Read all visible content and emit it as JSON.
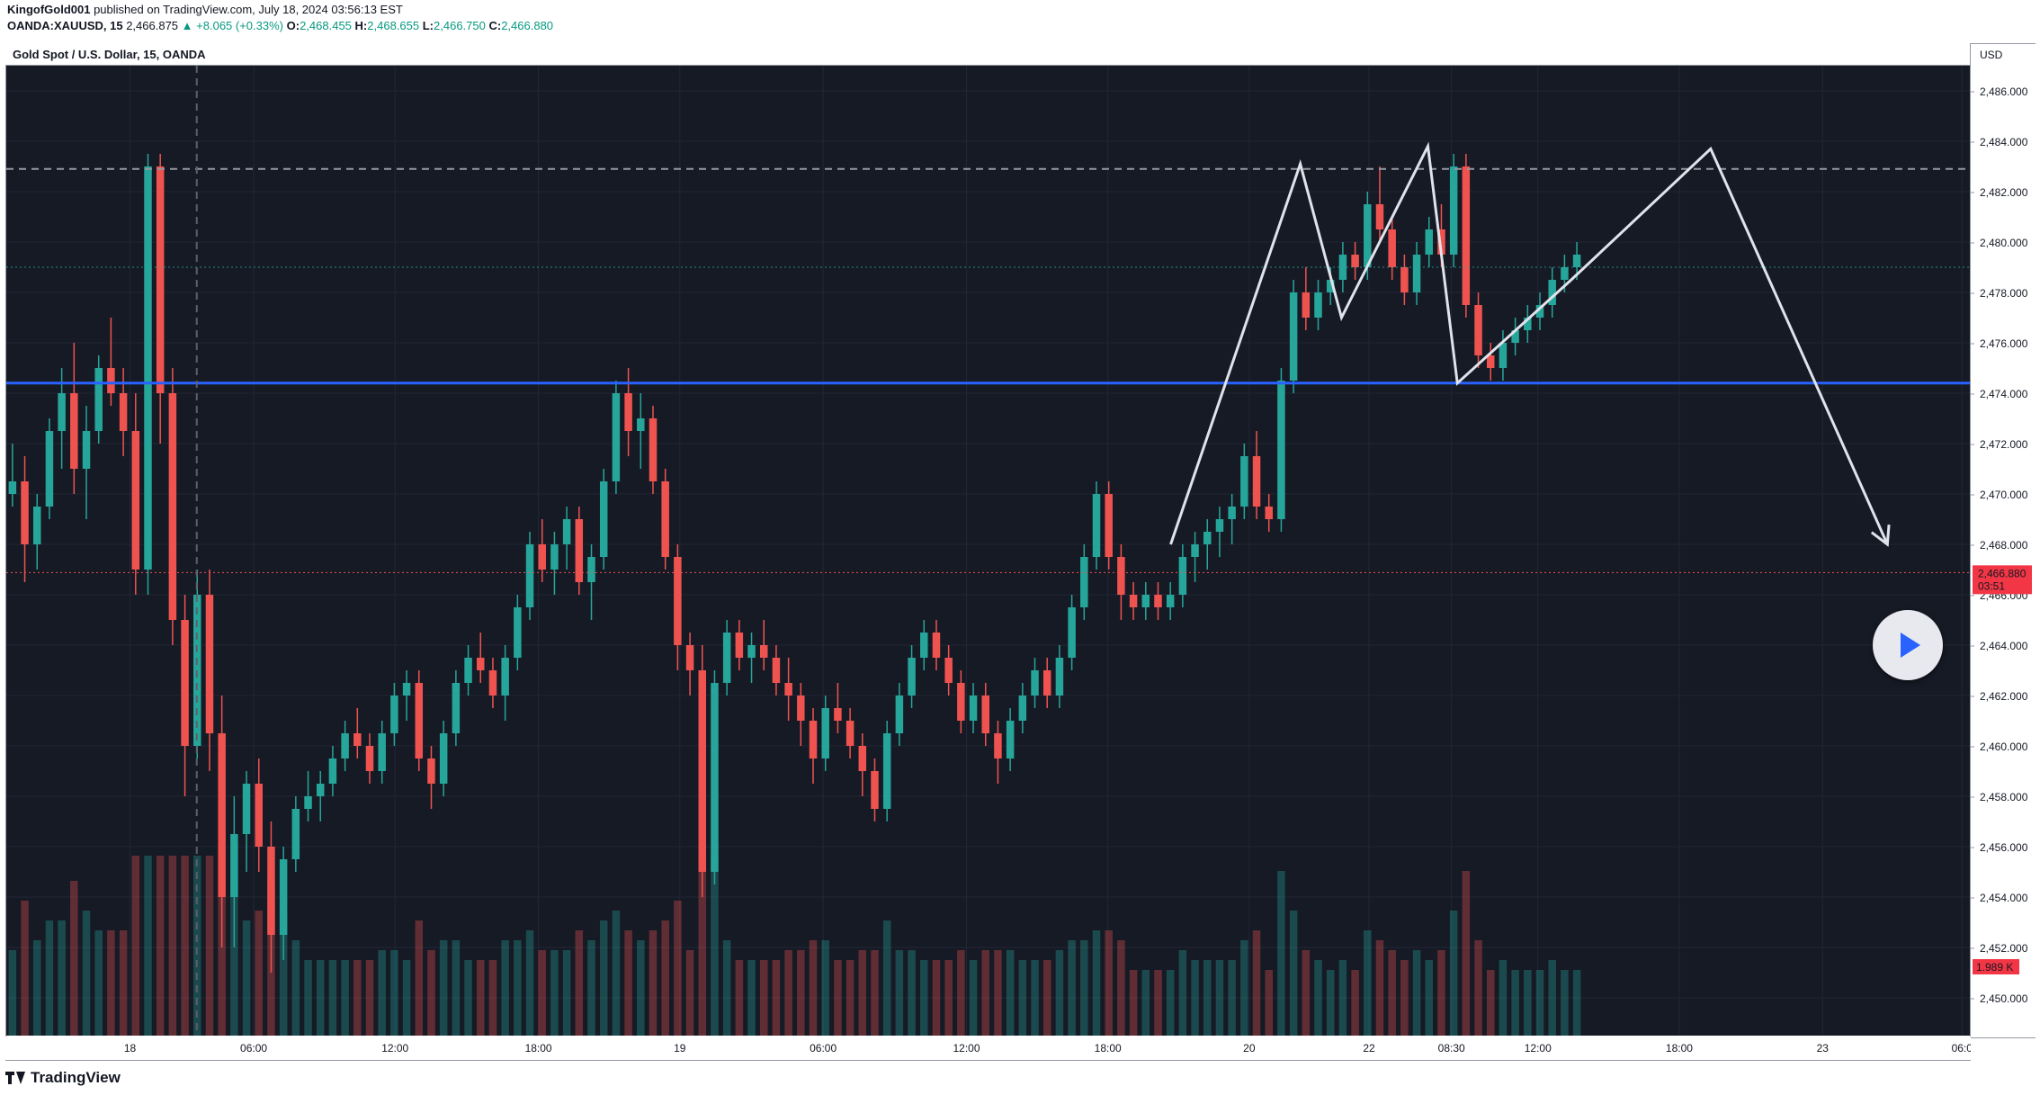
{
  "header": {
    "author": "KingofGold001",
    "published_text": "published on TradingView.com, July 18, 2024 03:56:13 EST",
    "symbol_code": "OANDA:XAUUSD, 15",
    "last_price": "2,466.875",
    "change": "▲ +8.065 (+0.33%)",
    "ohlc": {
      "o_label": "O:",
      "o": "2,468.455",
      "h_label": "H:",
      "h": "2,468.655",
      "l_label": "L:",
      "l": "2,466.750",
      "c_label": "C:",
      "c": "2,466.880"
    }
  },
  "pane": {
    "title": "Gold Spot / U.S. Dollar, 15, OANDA",
    "currency": "USD",
    "current_price_label": "2,466.880",
    "countdown_label": "03:51",
    "volume_label": "1.989 K"
  },
  "brand": {
    "name": "TradingView"
  },
  "colors": {
    "background": "#161a25",
    "up": "#26a69a",
    "down": "#ef5350",
    "support_line": "#2962ff",
    "drawing": "#e0e3eb",
    "dashed_resistance": "#9598a1"
  },
  "chart_data": {
    "type": "candlestick",
    "title": "Gold Spot / U.S. Dollar, 15, OANDA",
    "ylabel": "USD",
    "ylim": [
      2448.5,
      2487
    ],
    "y_ticks": [
      2486,
      2484,
      2482,
      2480,
      2478,
      2476,
      2474,
      2472,
      2470,
      2468,
      2466,
      2464,
      2462,
      2460,
      2458,
      2456,
      2454,
      2452,
      2450
    ],
    "y_tick_labels": [
      "2,486.000",
      "2,484.000",
      "2,482.000",
      "2,480.000",
      "2,478.000",
      "2,476.000",
      "2,474.000",
      "2,472.000",
      "2,470.000",
      "2,468.000",
      "2,466.000",
      "2,464.000",
      "2,462.000",
      "2,460.000",
      "2,458.000",
      "2,456.000",
      "2,454.000",
      "2,452.000",
      "2,450.000"
    ],
    "x_ticks": [
      {
        "label": "18",
        "x": 0.063
      },
      {
        "label": "06:00",
        "x": 0.126
      },
      {
        "label": "12:00",
        "x": 0.198
      },
      {
        "label": "18:00",
        "x": 0.271
      },
      {
        "label": "19",
        "x": 0.343
      },
      {
        "label": "06:00",
        "x": 0.416
      },
      {
        "label": "12:00",
        "x": 0.489
      },
      {
        "label": "18:00",
        "x": 0.561
      },
      {
        "label": "20",
        "x": 0.633
      },
      {
        "label": "22",
        "x": 0.694
      },
      {
        "label": "08:30",
        "x": 0.736
      },
      {
        "label": "12:00",
        "x": 0.78
      },
      {
        "label": "18:00",
        "x": 0.852
      },
      {
        "label": "23",
        "x": 0.925
      },
      {
        "label": "06:0",
        "x": 0.996
      }
    ],
    "horizontal_lines": {
      "support": 2474.4,
      "resistance_dashed": 2482.9,
      "current_price_dotted": 2466.88,
      "green_dotted": 2479.0
    },
    "vertical_dashed_x": 0.097,
    "candles_x_end": 0.803,
    "candles": [
      [
        2470,
        2472,
        2469.5,
        2470.5
      ],
      [
        2470.5,
        2471.5,
        2466.5,
        2468
      ],
      [
        2468,
        2470,
        2467,
        2469.5
      ],
      [
        2469.5,
        2473,
        2469,
        2472.5
      ],
      [
        2472.5,
        2475,
        2471,
        2474
      ],
      [
        2474,
        2476,
        2470,
        2471
      ],
      [
        2471,
        2473.5,
        2469,
        2472.5
      ],
      [
        2472.5,
        2475.5,
        2472,
        2475
      ],
      [
        2475,
        2477,
        2473.5,
        2474
      ],
      [
        2474,
        2475,
        2471.5,
        2472.5
      ],
      [
        2472.5,
        2474,
        2466,
        2467
      ],
      [
        2467,
        2483.5,
        2466,
        2483
      ],
      [
        2483,
        2483.5,
        2472,
        2474
      ],
      [
        2474,
        2475,
        2464,
        2465
      ],
      [
        2465,
        2466,
        2458,
        2460
      ],
      [
        2460,
        2467,
        2459.5,
        2466
      ],
      [
        2466,
        2467,
        2459,
        2460.5
      ],
      [
        2460.5,
        2462,
        2452,
        2454
      ],
      [
        2454,
        2458,
        2452,
        2456.5
      ],
      [
        2456.5,
        2459,
        2455,
        2458.5
      ],
      [
        2458.5,
        2459.5,
        2455,
        2456
      ],
      [
        2456,
        2457,
        2451,
        2452.5
      ],
      [
        2452.5,
        2456,
        2451.5,
        2455.5
      ],
      [
        2455.5,
        2458,
        2455,
        2457.5
      ],
      [
        2457.5,
        2459,
        2457,
        2458
      ],
      [
        2458,
        2459,
        2457,
        2458.5
      ],
      [
        2458.5,
        2460,
        2458,
        2459.5
      ],
      [
        2459.5,
        2461,
        2459,
        2460.5
      ],
      [
        2460.5,
        2461.5,
        2459.5,
        2460
      ],
      [
        2460,
        2460.5,
        2458.5,
        2459
      ],
      [
        2459,
        2461,
        2458.5,
        2460.5
      ],
      [
        2460.5,
        2462.5,
        2460,
        2462
      ],
      [
        2462,
        2463,
        2461,
        2462.5
      ],
      [
        2462.5,
        2463,
        2459,
        2459.5
      ],
      [
        2459.5,
        2460,
        2457.5,
        2458.5
      ],
      [
        2458.5,
        2461,
        2458,
        2460.5
      ],
      [
        2460.5,
        2463,
        2460,
        2462.5
      ],
      [
        2462.5,
        2464,
        2462,
        2463.5
      ],
      [
        2463.5,
        2464.5,
        2462.5,
        2463
      ],
      [
        2463,
        2463.5,
        2461.5,
        2462
      ],
      [
        2462,
        2464,
        2461,
        2463.5
      ],
      [
        2463.5,
        2466,
        2463,
        2465.5
      ],
      [
        2465.5,
        2468.5,
        2465,
        2468
      ],
      [
        2468,
        2469,
        2466.5,
        2467
      ],
      [
        2467,
        2468.5,
        2466,
        2468
      ],
      [
        2468,
        2469.5,
        2467,
        2469
      ],
      [
        2469,
        2469.5,
        2466,
        2466.5
      ],
      [
        2466.5,
        2468,
        2465,
        2467.5
      ],
      [
        2467.5,
        2471,
        2467,
        2470.5
      ],
      [
        2470.5,
        2474.5,
        2470,
        2474
      ],
      [
        2474,
        2475,
        2471.5,
        2472.5
      ],
      [
        2472.5,
        2474,
        2471,
        2473
      ],
      [
        2473,
        2473.5,
        2470,
        2470.5
      ],
      [
        2470.5,
        2471,
        2467,
        2467.5
      ],
      [
        2467.5,
        2468,
        2463,
        2464
      ],
      [
        2464,
        2464.5,
        2462,
        2463
      ],
      [
        2463,
        2464,
        2454,
        2455
      ],
      [
        2455,
        2463,
        2454.5,
        2462.5
      ],
      [
        2462.5,
        2465,
        2462,
        2464.5
      ],
      [
        2464.5,
        2465,
        2463,
        2463.5
      ],
      [
        2463.5,
        2464.5,
        2462.5,
        2464
      ],
      [
        2464,
        2465,
        2463,
        2463.5
      ],
      [
        2463.5,
        2464,
        2462,
        2462.5
      ],
      [
        2462.5,
        2463.5,
        2461,
        2462
      ],
      [
        2462,
        2462.5,
        2460,
        2461
      ],
      [
        2461,
        2461.5,
        2458.5,
        2459.5
      ],
      [
        2459.5,
        2462,
        2459,
        2461.5
      ],
      [
        2461.5,
        2462.5,
        2460.5,
        2461
      ],
      [
        2461,
        2461.5,
        2459.5,
        2460
      ],
      [
        2460,
        2460.5,
        2458,
        2459
      ],
      [
        2459,
        2459.5,
        2457,
        2457.5
      ],
      [
        2457.5,
        2461,
        2457,
        2460.5
      ],
      [
        2460.5,
        2462.5,
        2460,
        2462
      ],
      [
        2462,
        2464,
        2461.5,
        2463.5
      ],
      [
        2463.5,
        2465,
        2463,
        2464.5
      ],
      [
        2464.5,
        2465,
        2463,
        2463.5
      ],
      [
        2463.5,
        2464,
        2462,
        2462.5
      ],
      [
        2462.5,
        2463,
        2460.5,
        2461
      ],
      [
        2461,
        2462.5,
        2460.5,
        2462
      ],
      [
        2462,
        2462.5,
        2460,
        2460.5
      ],
      [
        2460.5,
        2461,
        2458.5,
        2459.5
      ],
      [
        2459.5,
        2461.5,
        2459,
        2461
      ],
      [
        2461,
        2462.5,
        2460.5,
        2462
      ],
      [
        2462,
        2463.5,
        2461.5,
        2463
      ],
      [
        2463,
        2463.5,
        2461.5,
        2462
      ],
      [
        2462,
        2464,
        2461.5,
        2463.5
      ],
      [
        2463.5,
        2466,
        2463,
        2465.5
      ],
      [
        2465.5,
        2468,
        2465,
        2467.5
      ],
      [
        2467.5,
        2470.5,
        2467,
        2470
      ],
      [
        2470,
        2470.5,
        2467,
        2467.5
      ],
      [
        2467.5,
        2468,
        2465,
        2466
      ],
      [
        2466,
        2466.5,
        2465,
        2465.5
      ],
      [
        2465.5,
        2466.5,
        2465,
        2466
      ],
      [
        2466,
        2466.5,
        2465,
        2465.5
      ],
      [
        2465.5,
        2466.5,
        2465,
        2466
      ],
      [
        2466,
        2468,
        2465.5,
        2467.5
      ],
      [
        2467.5,
        2468.5,
        2466.5,
        2468
      ],
      [
        2468,
        2469,
        2467,
        2468.5
      ],
      [
        2468.5,
        2469.5,
        2467.5,
        2469
      ],
      [
        2469,
        2470,
        2468,
        2469.5
      ],
      [
        2469.5,
        2472,
        2469,
        2471.5
      ],
      [
        2471.5,
        2472.5,
        2469,
        2469.5
      ],
      [
        2469.5,
        2470,
        2468.5,
        2469
      ],
      [
        2469,
        2475,
        2468.5,
        2474.5
      ],
      [
        2474.5,
        2478.5,
        2474,
        2478
      ],
      [
        2478,
        2479,
        2476.5,
        2477
      ],
      [
        2477,
        2478.5,
        2476.5,
        2478
      ],
      [
        2478,
        2479,
        2477.5,
        2478.5
      ],
      [
        2478.5,
        2480,
        2478,
        2479.5
      ],
      [
        2479.5,
        2480,
        2478.5,
        2479
      ],
      [
        2479,
        2482,
        2478.5,
        2481.5
      ],
      [
        2481.5,
        2483,
        2480,
        2480.5
      ],
      [
        2480.5,
        2481,
        2478.5,
        2479
      ],
      [
        2479,
        2479.5,
        2477.5,
        2478
      ],
      [
        2478,
        2480,
        2477.5,
        2479.5
      ],
      [
        2479.5,
        2481,
        2479,
        2480.5
      ],
      [
        2480.5,
        2481.5,
        2479,
        2479.5
      ],
      [
        2479.5,
        2483.5,
        2479,
        2483
      ],
      [
        2483,
        2483.5,
        2477,
        2477.5
      ],
      [
        2477.5,
        2478,
        2475,
        2475.5
      ],
      [
        2475.5,
        2476,
        2474.5,
        2475
      ],
      [
        2475,
        2476.5,
        2474.5,
        2476
      ],
      [
        2476,
        2477,
        2475.5,
        2476.5
      ],
      [
        2476.5,
        2477.5,
        2476,
        2477
      ],
      [
        2477,
        2478,
        2476.5,
        2477.5
      ],
      [
        2477.5,
        2479,
        2477,
        2478.5
      ],
      [
        2478.5,
        2479.5,
        2478,
        2479
      ],
      [
        2479,
        2480,
        2478.5,
        2479.5
      ]
    ],
    "volume_max": 1.0,
    "drawing_polyline": [
      {
        "x": 0.593,
        "y": 2468
      },
      {
        "x": 0.659,
        "y": 2483.1
      },
      {
        "x": 0.68,
        "y": 2477
      },
      {
        "x": 0.724,
        "y": 2483.8
      },
      {
        "x": 0.739,
        "y": 2474.4
      },
      {
        "x": 0.797,
        "y": 2478.5
      },
      {
        "x": 0.868,
        "y": 2483.7
      },
      {
        "x": 0.958,
        "y": 2468
      }
    ]
  }
}
